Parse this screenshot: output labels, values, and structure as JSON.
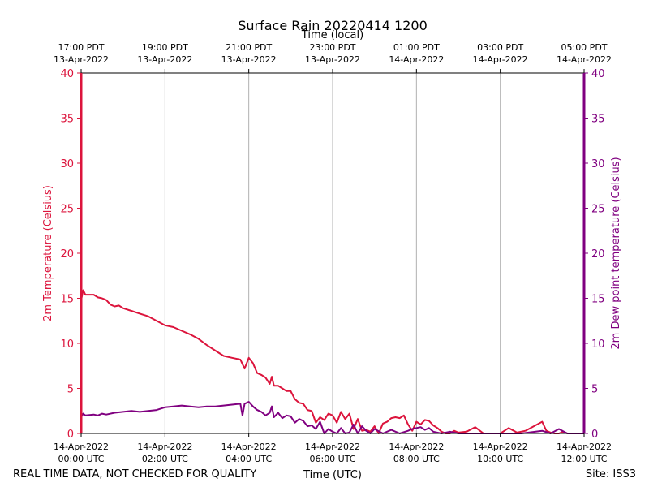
{
  "chart_data": {
    "type": "line",
    "title": "Surface Rain 20220414 1200",
    "top_axis_title": "Time (local)",
    "xlabel": "Time (UTC)",
    "ylabel_left": "2m Temperature (Celsius)",
    "ylabel_right": "2m Dew point temperature (Celsius)",
    "ylim": [
      0,
      40
    ],
    "xlim_hours_utc": [
      0,
      12
    ],
    "grid": "vertical",
    "y_ticks": [
      "0",
      "5",
      "10",
      "15",
      "20",
      "25",
      "30",
      "35",
      "40"
    ],
    "x_ticks_utc": [
      {
        "hour": 0,
        "date": "14-Apr-2022",
        "time": "00:00 UTC"
      },
      {
        "hour": 2,
        "date": "14-Apr-2022",
        "time": "02:00 UTC"
      },
      {
        "hour": 4,
        "date": "14-Apr-2022",
        "time": "04:00 UTC"
      },
      {
        "hour": 6,
        "date": "14-Apr-2022",
        "time": "06:00 UTC"
      },
      {
        "hour": 8,
        "date": "14-Apr-2022",
        "time": "08:00 UTC"
      },
      {
        "hour": 10,
        "date": "14-Apr-2022",
        "time": "10:00 UTC"
      },
      {
        "hour": 12,
        "date": "14-Apr-2022",
        "time": "12:00 UTC"
      }
    ],
    "x_ticks_local": [
      {
        "hour": 0,
        "time": "17:00 PDT",
        "date": "13-Apr-2022"
      },
      {
        "hour": 2,
        "time": "19:00 PDT",
        "date": "13-Apr-2022"
      },
      {
        "hour": 4,
        "time": "21:00 PDT",
        "date": "13-Apr-2022"
      },
      {
        "hour": 6,
        "time": "23:00 PDT",
        "date": "13-Apr-2022"
      },
      {
        "hour": 8,
        "time": "01:00 PDT",
        "date": "14-Apr-2022"
      },
      {
        "hour": 10,
        "time": "03:00 PDT",
        "date": "14-Apr-2022"
      },
      {
        "hour": 12,
        "time": "05:00 PDT",
        "date": "14-Apr-2022"
      }
    ],
    "series": [
      {
        "name": "2m Temperature",
        "color": "#dc143c",
        "axis": "left",
        "x": [
          0.0,
          0.05,
          0.1,
          0.3,
          0.4,
          0.5,
          0.6,
          0.7,
          0.8,
          0.9,
          1.0,
          1.2,
          1.4,
          1.6,
          1.8,
          2.0,
          2.2,
          2.4,
          2.6,
          2.8,
          3.0,
          3.2,
          3.4,
          3.6,
          3.8,
          3.9,
          4.0,
          4.1,
          4.2,
          4.3,
          4.4,
          4.5,
          4.55,
          4.6,
          4.7,
          4.8,
          4.9,
          5.0,
          5.1,
          5.2,
          5.3,
          5.4,
          5.5,
          5.6,
          5.7,
          5.8,
          5.9,
          6.0,
          6.1,
          6.2,
          6.3,
          6.4,
          6.5,
          6.6,
          6.7,
          6.8,
          6.9,
          7.0,
          7.1,
          7.2,
          7.3,
          7.4,
          7.5,
          7.6,
          7.7,
          7.8,
          7.9,
          8.0,
          8.1,
          8.2,
          8.3,
          8.4,
          8.5,
          8.6,
          8.7,
          8.8,
          8.9,
          9.0,
          9.2,
          9.4,
          9.6,
          9.8,
          10.0,
          10.2,
          10.4,
          10.6,
          10.8,
          11.0,
          11.1,
          11.2,
          11.3,
          11.4,
          11.5,
          11.6,
          11.7,
          11.8,
          11.9,
          12.0
        ],
        "y": [
          14.8,
          15.9,
          15.4,
          15.4,
          15.1,
          15.0,
          14.8,
          14.3,
          14.1,
          14.2,
          13.9,
          13.6,
          13.3,
          13.0,
          12.5,
          12.0,
          11.8,
          11.4,
          11.0,
          10.5,
          9.8,
          9.2,
          8.6,
          8.4,
          8.2,
          7.2,
          8.4,
          7.8,
          6.7,
          6.5,
          6.2,
          5.5,
          6.3,
          5.3,
          5.3,
          5.0,
          4.7,
          4.7,
          3.8,
          3.4,
          3.3,
          2.6,
          2.5,
          1.2,
          1.8,
          1.5,
          2.2,
          2.0,
          1.2,
          2.4,
          1.6,
          2.2,
          0.5,
          1.6,
          0.3,
          0.4,
          0.2,
          0.8,
          0.0,
          1.1,
          1.3,
          1.7,
          1.8,
          1.7,
          2.0,
          1.0,
          0.3,
          1.3,
          1.0,
          1.5,
          1.4,
          0.9,
          0.6,
          0.2,
          0.0,
          0.0,
          0.3,
          0.1,
          0.2,
          0.7,
          0.0,
          0.0,
          0.0,
          0.6,
          0.1,
          0.3,
          0.8,
          1.3,
          0.3,
          0.1,
          0.0,
          0.0,
          0.2,
          0.0,
          0.0,
          0.0,
          0.0,
          0.0
        ]
      },
      {
        "name": "2m Dew point temperature",
        "color": "#800080",
        "axis": "right",
        "x": [
          0.0,
          0.05,
          0.1,
          0.3,
          0.4,
          0.5,
          0.6,
          0.8,
          1.0,
          1.2,
          1.4,
          1.6,
          1.8,
          2.0,
          2.2,
          2.4,
          2.6,
          2.8,
          3.0,
          3.2,
          3.4,
          3.6,
          3.8,
          3.85,
          3.9,
          4.0,
          4.1,
          4.2,
          4.3,
          4.4,
          4.5,
          4.55,
          4.6,
          4.7,
          4.8,
          4.9,
          5.0,
          5.1,
          5.2,
          5.3,
          5.4,
          5.5,
          5.6,
          5.7,
          5.8,
          5.9,
          6.0,
          6.1,
          6.2,
          6.3,
          6.4,
          6.5,
          6.6,
          6.7,
          6.8,
          6.9,
          7.0,
          7.2,
          7.4,
          7.6,
          7.8,
          7.9,
          8.0,
          8.1,
          8.2,
          8.3,
          8.4,
          8.6,
          8.8,
          9.0,
          9.5,
          10.0,
          10.5,
          11.0,
          11.2,
          11.4,
          11.6,
          11.8,
          12.0
        ],
        "y": [
          1.8,
          2.2,
          2.0,
          2.1,
          2.0,
          2.2,
          2.1,
          2.3,
          2.4,
          2.5,
          2.4,
          2.5,
          2.6,
          2.9,
          3.0,
          3.1,
          3.0,
          2.9,
          3.0,
          3.0,
          3.1,
          3.2,
          3.3,
          2.0,
          3.3,
          3.5,
          3.0,
          2.6,
          2.4,
          2.0,
          2.3,
          3.0,
          1.8,
          2.3,
          1.7,
          2.0,
          1.9,
          1.2,
          1.6,
          1.4,
          0.8,
          0.9,
          0.5,
          1.3,
          0.0,
          0.5,
          0.2,
          0.0,
          0.6,
          0.0,
          0.1,
          1.0,
          0.0,
          0.8,
          0.3,
          0.0,
          0.5,
          0.0,
          0.4,
          0.0,
          0.3,
          0.5,
          0.6,
          0.7,
          0.4,
          0.6,
          0.2,
          0.0,
          0.2,
          0.0,
          0.0,
          0.0,
          0.0,
          0.3,
          0.0,
          0.5,
          0.0,
          0.0,
          0.0
        ]
      }
    ]
  },
  "footer": {
    "disclaimer": "REAL TIME DATA, NOT CHECKED FOR QUALITY",
    "site": "Site: ISS3"
  },
  "colors": {
    "left_axis": "#dc143c",
    "right_axis": "#800080",
    "grid": "#b0b0b0"
  }
}
